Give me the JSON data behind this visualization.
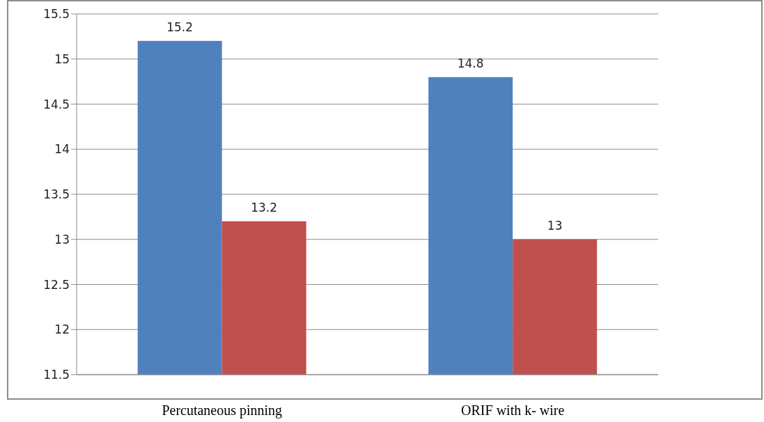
{
  "chart_data": {
    "type": "bar",
    "categories": [
      "Percutaneous pinning",
      "ORIF with k- wire"
    ],
    "series": [
      {
        "color": "#4f81bd",
        "values": [
          15.2,
          14.8
        ]
      },
      {
        "color": "#c0504d",
        "values": [
          13.2,
          13
        ]
      }
    ],
    "ylim": [
      11.5,
      15.5
    ],
    "yticks": [
      11.5,
      12,
      12.5,
      13,
      13.5,
      14,
      14.5,
      15,
      15.5
    ],
    "grid": "y",
    "data_labels": true
  }
}
